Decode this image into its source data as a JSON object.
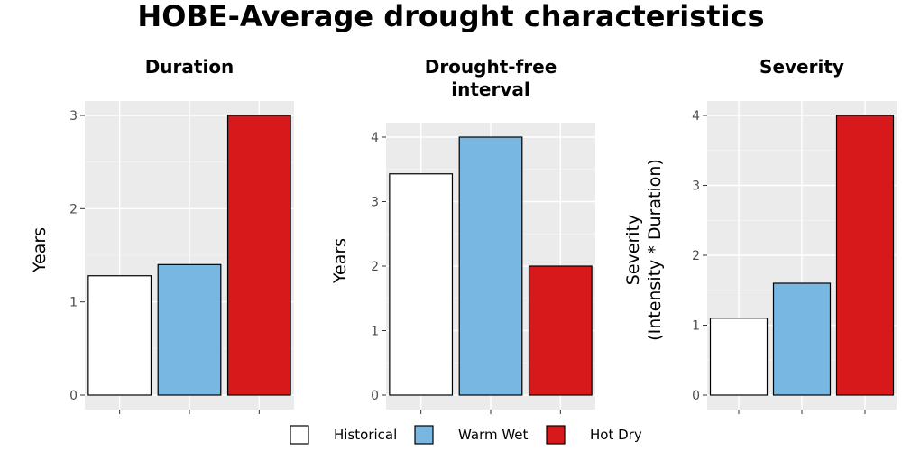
{
  "title": "HOBE-Average drought characteristics",
  "colors": {
    "Historical": "#ffffff",
    "Warm Wet": "#77b7e1",
    "Hot Dry": "#d7191c"
  },
  "legend": [
    "Historical",
    "Warm Wet",
    "Hot Dry"
  ],
  "chart_data": [
    {
      "type": "bar",
      "title": [
        "Duration"
      ],
      "ylabel": [
        "Years"
      ],
      "categories": [
        "Historical",
        "Warm Wet",
        "Hot Dry"
      ],
      "values": [
        1.28,
        1.4,
        3.0
      ],
      "ylim": [
        0,
        3
      ],
      "yticks": [
        0,
        1,
        2,
        3
      ],
      "grid": true
    },
    {
      "type": "bar",
      "title": [
        "Drought-free",
        "interval"
      ],
      "ylabel": [
        "Years"
      ],
      "categories": [
        "Historical",
        "Warm Wet",
        "Hot Dry"
      ],
      "values": [
        3.43,
        4.0,
        2.0
      ],
      "ylim": [
        0,
        4
      ],
      "yticks": [
        0,
        1,
        2,
        3,
        4
      ],
      "grid": true
    },
    {
      "type": "bar",
      "title": [
        "Severity"
      ],
      "ylabel": [
        "Severity",
        "(Intensity * Duration)"
      ],
      "categories": [
        "Historical",
        "Warm Wet",
        "Hot Dry"
      ],
      "values": [
        1.1,
        1.6,
        4.0
      ],
      "ylim": [
        0,
        4
      ],
      "yticks": [
        0,
        1,
        2,
        3,
        4
      ],
      "grid": true
    }
  ]
}
